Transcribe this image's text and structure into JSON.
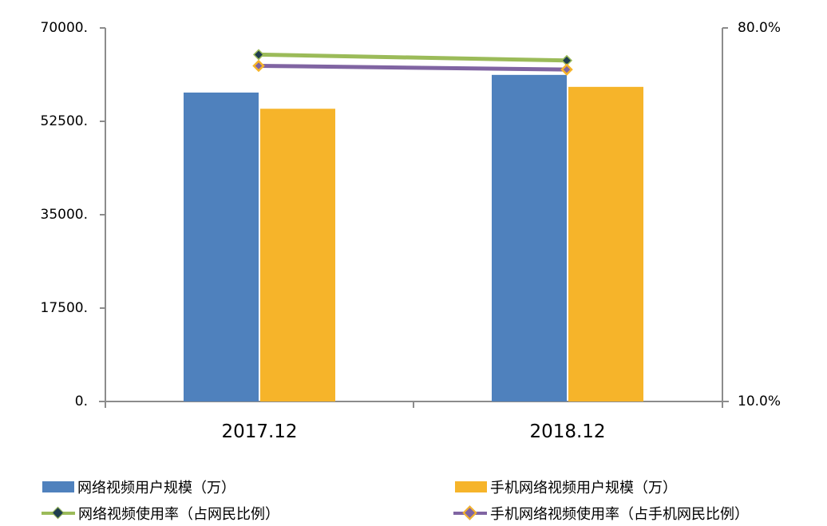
{
  "chart_data": {
    "type": "bar",
    "title": "",
    "categories": [
      "2017.12",
      "2018.12"
    ],
    "series": [
      {
        "name": "网络视频用户规模（万）",
        "type": "bar",
        "axis": "left",
        "color": "#4F81BD",
        "values": [
          57892,
          61201
        ]
      },
      {
        "name": "手机网络视频用户规模（万）",
        "type": "bar",
        "axis": "left",
        "color": "#F6B42A",
        "values": [
          54857,
          58958
        ]
      },
      {
        "name": "网络视频使用率（占网民比例）",
        "type": "line",
        "axis": "right",
        "color": "#9BBB59",
        "marker_color": "#1F3D4F",
        "values": [
          75.0,
          73.9
        ]
      },
      {
        "name": "手机网络视频使用率（占手机网民比例）",
        "type": "line",
        "axis": "right",
        "color": "#8064A2",
        "marker_color": "#F6B42A",
        "values": [
          72.9,
          72.2
        ]
      }
    ],
    "y_left": {
      "ticks": [
        "70000.",
        "52500.",
        "35000.",
        "17500.",
        "0."
      ],
      "range": [
        0,
        70000
      ]
    },
    "y_right": {
      "ticks": [
        "80.0%",
        "10.0%"
      ],
      "range": [
        10,
        80
      ],
      "unit": "%"
    },
    "xlabel": "",
    "ylabel": "",
    "grid": false,
    "legend_position": "bottom"
  },
  "legend": [
    {
      "label": "网络视频用户规模（万）",
      "kind": "bar",
      "color": "#4F81BD"
    },
    {
      "label": "手机网络视频用户规模（万）",
      "kind": "bar",
      "color": "#F6B42A"
    },
    {
      "label": "网络视频使用率（占网民比例）",
      "kind": "line",
      "color": "#9BBB59",
      "marker": "#1F3D4F"
    },
    {
      "label": "手机网络视频使用率（占手机网民比例）",
      "kind": "line",
      "color": "#8064A2",
      "marker": "#F6B42A"
    }
  ]
}
